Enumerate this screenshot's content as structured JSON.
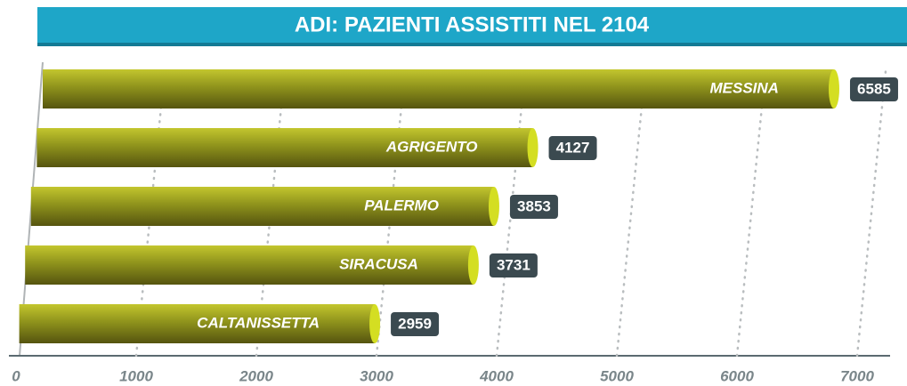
{
  "chart_data": {
    "type": "bar",
    "orientation": "horizontal",
    "title": "ADI: PAZIENTI ASSISTITI NEL 2104",
    "categories": [
      "MESSINA",
      "AGRIGENTO",
      "PALERMO",
      "SIRACUSA",
      "CALTANISSETTA"
    ],
    "values": [
      6585,
      4127,
      3853,
      3731,
      2959
    ],
    "color": "#8f931c",
    "xlim": [
      0,
      7000
    ],
    "xticks": [
      0,
      1000,
      2000,
      3000,
      4000,
      5000,
      6000,
      7000
    ],
    "grid": true
  }
}
